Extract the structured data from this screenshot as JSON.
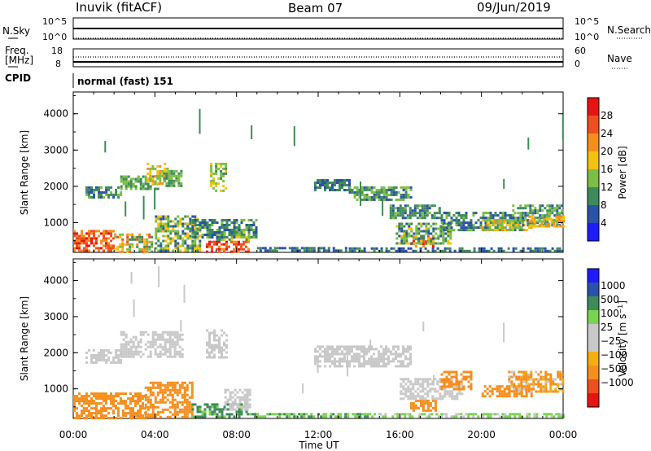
{
  "header": {
    "station": "Inuvik (fitACF)",
    "beam": "Beam 07",
    "date": "09/Jun/2019"
  },
  "panels": {
    "nsky": {
      "left_label": "N.Sky",
      "right_label": "N.Search",
      "ticks_left": [
        "10^5",
        "10^0"
      ],
      "ticks_right": [
        "10^5",
        "10^0"
      ]
    },
    "freq": {
      "left_label_1": "Freq.",
      "left_label_2": "[MHz]",
      "right_label": "Nave",
      "ticks_left": [
        "18",
        "8"
      ],
      "ticks_right": [
        "60",
        "0"
      ]
    },
    "cpid": {
      "label": "CPID",
      "mode_text": "normal (fast) 151"
    }
  },
  "colors": {
    "power": [
      "#1c1cff",
      "#2a52a8",
      "#3e8a5a",
      "#7bbd46",
      "#f4c20d",
      "#f68e1c",
      "#ef4f20",
      "#e61412"
    ],
    "velocity": [
      "#e61412",
      "#ef4f20",
      "#f68e1c",
      "#f5ad10",
      "#c8c8c8",
      "#c8c8c8",
      "#79d34e",
      "#3e8a5a",
      "#2a52a8",
      "#1c1cff"
    ],
    "background": "#ffffff"
  },
  "chart_data": [
    {
      "type": "heatmap",
      "title": "Power",
      "xlabel": "Time UT",
      "ylabel": "Slant Range [km]",
      "xlim": [
        "00:00",
        "24:00"
      ],
      "ylim": [
        180,
        4600
      ],
      "x_ticks": [
        "00:00",
        "04:00",
        "08:00",
        "12:00",
        "16:00",
        "20:00",
        "00:00"
      ],
      "y_ticks": [
        "1000",
        "2000",
        "3000",
        "4000"
      ],
      "colorbar_label": "Power [dB]",
      "colorbar_ticks": [
        "4",
        "8",
        "12",
        "16",
        "20",
        "24",
        "28"
      ],
      "colorbar_range": [
        0,
        32
      ],
      "regions": [
        {
          "t0": 0.0,
          "t1": 2.0,
          "r0": 200,
          "r1": 800,
          "v0": 20,
          "v1": 30
        },
        {
          "t0": 2.0,
          "t1": 3.8,
          "r0": 200,
          "r1": 700,
          "v0": 8,
          "v1": 26
        },
        {
          "t0": 0.6,
          "t1": 2.3,
          "r0": 1700,
          "r1": 2000,
          "v0": 6,
          "v1": 14
        },
        {
          "t0": 2.3,
          "t1": 4.2,
          "r0": 1900,
          "r1": 2300,
          "v0": 8,
          "v1": 16
        },
        {
          "t0": 3.6,
          "t1": 4.6,
          "r0": 2050,
          "r1": 2650,
          "v0": 12,
          "v1": 22
        },
        {
          "t0": 4.4,
          "t1": 5.3,
          "r0": 2000,
          "r1": 2450,
          "v0": 8,
          "v1": 16
        },
        {
          "t0": 4.0,
          "t1": 6.2,
          "r0": 200,
          "r1": 1200,
          "v0": 6,
          "v1": 20
        },
        {
          "t0": 6.7,
          "t1": 7.5,
          "r0": 1900,
          "r1": 2650,
          "v0": 10,
          "v1": 20
        },
        {
          "t0": 6.5,
          "t1": 8.6,
          "r0": 200,
          "r1": 500,
          "v0": 22,
          "v1": 30
        },
        {
          "t0": 7.0,
          "t1": 8.6,
          "r0": 500,
          "r1": 900,
          "v0": 8,
          "v1": 20
        },
        {
          "t0": 5.8,
          "t1": 9.0,
          "r0": 600,
          "r1": 1100,
          "v0": 5,
          "v1": 14
        },
        {
          "t0": 9.0,
          "t1": 13.5,
          "r0": 200,
          "r1": 330,
          "v0": 4,
          "v1": 12
        },
        {
          "t0": 11.8,
          "t1": 13.5,
          "r0": 1900,
          "r1": 2200,
          "v0": 5,
          "v1": 12
        },
        {
          "t0": 13.5,
          "t1": 16.5,
          "r0": 1600,
          "r1": 2000,
          "v0": 6,
          "v1": 16
        },
        {
          "t0": 15.5,
          "t1": 18.0,
          "r0": 1100,
          "r1": 1500,
          "v0": 6,
          "v1": 14
        },
        {
          "t0": 13.5,
          "t1": 24.0,
          "r0": 200,
          "r1": 320,
          "v0": 4,
          "v1": 12
        },
        {
          "t0": 16.5,
          "t1": 17.6,
          "r0": 380,
          "r1": 650,
          "v0": 18,
          "v1": 30
        },
        {
          "t0": 15.8,
          "t1": 18.5,
          "r0": 400,
          "r1": 1000,
          "v0": 6,
          "v1": 18
        },
        {
          "t0": 18.0,
          "t1": 22.0,
          "r0": 800,
          "r1": 1300,
          "v0": 6,
          "v1": 14
        },
        {
          "t0": 20.0,
          "t1": 22.5,
          "r0": 800,
          "r1": 1100,
          "v0": 12,
          "v1": 22
        },
        {
          "t0": 21.5,
          "t1": 24.0,
          "r0": 900,
          "r1": 1500,
          "v0": 6,
          "v1": 16
        },
        {
          "t0": 22.3,
          "t1": 24.0,
          "r0": 900,
          "r1": 1200,
          "v0": 14,
          "v1": 24
        }
      ]
    },
    {
      "type": "heatmap",
      "title": "Velocity",
      "xlabel": "Time UT",
      "ylabel": "Slant Range [km]",
      "xlim": [
        "00:00",
        "24:00"
      ],
      "ylim": [
        180,
        4600
      ],
      "x_ticks": [
        "00:00",
        "04:00",
        "08:00",
        "12:00",
        "16:00",
        "20:00",
        "00:00"
      ],
      "y_ticks": [
        "1000",
        "2000",
        "3000",
        "4000"
      ],
      "colorbar_label": "Velocity [m s^-1]",
      "colorbar_ticks": [
        "1000",
        "500",
        "100",
        "25",
        "−25",
        "−100",
        "−500",
        "−1000"
      ],
      "colorbar_range": [
        -1000,
        1000
      ],
      "regions": [
        {
          "t0": 0.0,
          "t1": 3.5,
          "r0": 200,
          "r1": 900,
          "v0": -500,
          "v1": -150
        },
        {
          "t0": 3.5,
          "t1": 5.8,
          "r0": 200,
          "r1": 1200,
          "v0": -400,
          "v1": -100
        },
        {
          "t0": 2.3,
          "t1": 5.3,
          "r0": 1900,
          "r1": 2600,
          "v0": -20,
          "v1": 20
        },
        {
          "t0": 0.6,
          "t1": 2.3,
          "r0": 1700,
          "r1": 2100,
          "v0": -20,
          "v1": 20
        },
        {
          "t0": 6.5,
          "t1": 7.5,
          "r0": 1900,
          "r1": 2650,
          "v0": -20,
          "v1": 20
        },
        {
          "t0": 5.8,
          "t1": 8.5,
          "r0": 200,
          "r1": 600,
          "v0": 60,
          "v1": 300
        },
        {
          "t0": 7.4,
          "t1": 8.6,
          "r0": 450,
          "r1": 1000,
          "v0": -20,
          "v1": 20
        },
        {
          "t0": 8.5,
          "t1": 15.0,
          "r0": 200,
          "r1": 330,
          "v0": 40,
          "v1": 150
        },
        {
          "t0": 11.8,
          "t1": 16.5,
          "r0": 1600,
          "r1": 2200,
          "v0": -20,
          "v1": 20
        },
        {
          "t0": 15.0,
          "t1": 24.0,
          "r0": 200,
          "r1": 330,
          "v0": -20,
          "v1": 100
        },
        {
          "t0": 16.5,
          "t1": 17.8,
          "r0": 400,
          "r1": 700,
          "v0": -500,
          "v1": -300
        },
        {
          "t0": 16.0,
          "t1": 19.0,
          "r0": 700,
          "r1": 1300,
          "v0": -20,
          "v1": 20
        },
        {
          "t0": 18.0,
          "t1": 19.5,
          "r0": 1000,
          "r1": 1500,
          "v0": -300,
          "v1": -100
        },
        {
          "t0": 20.0,
          "t1": 22.5,
          "r0": 800,
          "r1": 1100,
          "v0": -500,
          "v1": -200
        },
        {
          "t0": 21.3,
          "t1": 24.0,
          "r0": 900,
          "r1": 1500,
          "v0": -300,
          "v1": 20
        }
      ]
    }
  ]
}
